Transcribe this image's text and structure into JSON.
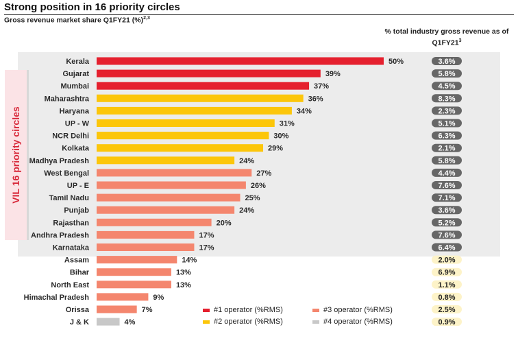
{
  "header": {
    "title": "Strong position in 16 priority circles",
    "subtitle": "Gross revenue market share Q1FY21 (%)",
    "subtitle_sup": "2,3",
    "rev_col_header": "% total industry gross revenue as of Q1FY21",
    "rev_col_header_sup": "3",
    "priority_label": "VIL 16 priority circles"
  },
  "colors": {
    "1": "#e5202e",
    "2": "#fcc60a",
    "3": "#f4866e",
    "4": "#c8c8c8",
    "pill_priority": "#676767",
    "pill_other": "#fdf3c8"
  },
  "legend": [
    {
      "rank": 1,
      "label": "#1 operator (%RMS)"
    },
    {
      "rank": 3,
      "label": "#3 operator (%RMS)"
    },
    {
      "rank": 2,
      "label": "#2 operator (%RMS)"
    },
    {
      "rank": 4,
      "label": "#4 operator (%RMS)"
    }
  ],
  "chart_data": {
    "type": "bar",
    "orientation": "horizontal",
    "title": "Gross revenue market share Q1FY21 (%)",
    "categories": [
      "Kerala",
      "Gujarat",
      "Mumbai",
      "Maharashtra",
      "Haryana",
      "UP - W",
      "NCR Delhi",
      "Kolkata",
      "Madhya Pradesh",
      "West Bengal",
      "UP - E",
      "Tamil Nadu",
      "Punjab",
      "Rajasthan",
      "Andhra Pradesh",
      "Karnataka",
      "Assam",
      "Bihar",
      "North East",
      "Himachal Pradesh",
      "Orissa",
      "J & K"
    ],
    "values": [
      50,
      39,
      37,
      36,
      34,
      31,
      30,
      29,
      24,
      27,
      26,
      25,
      24,
      20,
      17,
      17,
      14,
      13,
      13,
      9,
      7,
      4
    ],
    "value_labels": [
      "50%",
      "39%",
      "37%",
      "36%",
      "34%",
      "31%",
      "30%",
      "29%",
      "24%",
      "27%",
      "26%",
      "25%",
      "24%",
      "20%",
      "17%",
      "17%",
      "14%",
      "13%",
      "13%",
      "9%",
      "7%",
      "4%"
    ],
    "operator_rank": [
      1,
      1,
      1,
      2,
      2,
      2,
      2,
      2,
      2,
      3,
      3,
      3,
      3,
      3,
      3,
      3,
      3,
      3,
      3,
      3,
      3,
      4
    ],
    "priority": [
      true,
      true,
      true,
      true,
      true,
      true,
      true,
      true,
      true,
      true,
      true,
      true,
      true,
      true,
      true,
      true,
      false,
      false,
      false,
      false,
      false,
      false
    ],
    "industry_revenue_share": [
      "3.6%",
      "5.8%",
      "4.5%",
      "8.3%",
      "2.3%",
      "5.1%",
      "6.3%",
      "2.1%",
      "5.8%",
      "4.4%",
      "7.6%",
      "7.1%",
      "3.6%",
      "5.2%",
      "7.6%",
      "6.4%",
      "2.0%",
      "6.9%",
      "1.1%",
      "0.8%",
      "2.5%",
      "0.9%"
    ],
    "xlim": [
      0,
      50
    ],
    "legend_position": "bottom-right"
  }
}
